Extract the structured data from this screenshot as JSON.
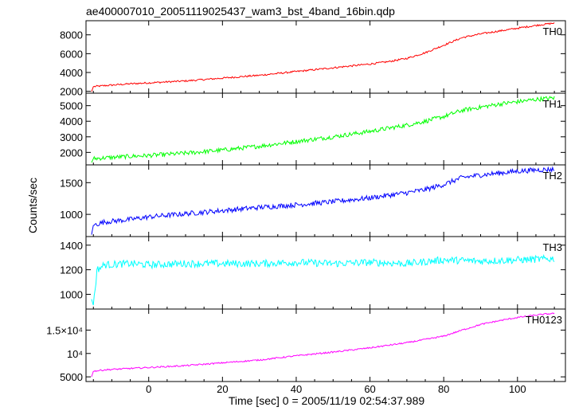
{
  "chart_data": {
    "type": "line",
    "title": "ae400007010_20051119025437_wam3_bst_4band_16bin.qdp",
    "xlabel": "Time [sec] 0 = 2005/11/19 02:54:37.989",
    "ylabel": "Counts/sec",
    "xlim": [
      -17,
      113
    ],
    "xticks": [
      0,
      20,
      40,
      60,
      80,
      100
    ],
    "grid": false,
    "panels": [
      {
        "name": "TH0",
        "color": "#ff0000",
        "ylim": [
          1800,
          9500
        ],
        "yticks": [
          2000,
          4000,
          6000,
          8000
        ],
        "ytick_labels": [
          "2000",
          "4000",
          "6000",
          "8000"
        ],
        "x": [
          -15.5,
          -15,
          -12,
          -5,
          0,
          10,
          20,
          30,
          40,
          50,
          60,
          65,
          70,
          75,
          80,
          85,
          90,
          95,
          100,
          105,
          110
        ],
        "values": [
          1950,
          2500,
          2600,
          2800,
          2900,
          3100,
          3400,
          3700,
          4100,
          4500,
          4900,
          5150,
          5500,
          6100,
          6900,
          7700,
          8100,
          8400,
          8700,
          9000,
          9250
        ]
      },
      {
        "name": "TH1",
        "color": "#00ff00",
        "ylim": [
          1200,
          5800
        ],
        "yticks": [
          2000,
          3000,
          4000,
          5000
        ],
        "ytick_labels": [
          "2000",
          "3000",
          "4000",
          "5000"
        ],
        "x": [
          -15.5,
          -15,
          -12,
          -5,
          0,
          10,
          20,
          30,
          40,
          50,
          60,
          70,
          75,
          80,
          85,
          90,
          95,
          100,
          105,
          110
        ],
        "values": [
          1350,
          1600,
          1650,
          1750,
          1800,
          1950,
          2150,
          2400,
          2700,
          3000,
          3350,
          3750,
          4000,
          4300,
          4700,
          4900,
          5100,
          5250,
          5400,
          5500
        ]
      },
      {
        "name": "TH2",
        "color": "#0000ff",
        "ylim": [
          650,
          1780
        ],
        "yticks": [
          1000,
          1500
        ],
        "ytick_labels": [
          "1000",
          "1500"
        ],
        "x": [
          -15.5,
          -15,
          -12,
          -5,
          0,
          10,
          20,
          30,
          40,
          50,
          60,
          65,
          70,
          75,
          80,
          85,
          90,
          95,
          100,
          105,
          110
        ],
        "values": [
          680,
          830,
          880,
          920,
          960,
          1010,
          1060,
          1110,
          1150,
          1200,
          1260,
          1300,
          1340,
          1390,
          1470,
          1580,
          1620,
          1650,
          1680,
          1700,
          1710
        ]
      },
      {
        "name": "TH3",
        "color": "#00ffff",
        "ylim": [
          880,
          1470
        ],
        "yticks": [
          1000,
          1200,
          1400
        ],
        "ytick_labels": [
          "1000",
          "1200",
          "1400"
        ],
        "x": [
          -15.5,
          -15,
          -14,
          -12,
          -5,
          0,
          10,
          20,
          30,
          40,
          50,
          60,
          70,
          80,
          90,
          100,
          110
        ],
        "values": [
          960,
          910,
          1200,
          1240,
          1250,
          1240,
          1250,
          1250,
          1250,
          1260,
          1250,
          1260,
          1250,
          1280,
          1270,
          1280,
          1290
        ]
      },
      {
        "name": "TH0123",
        "color": "#ff00ff",
        "ylim": [
          4000,
          19500
        ],
        "yticks": [
          5000,
          10000,
          15000
        ],
        "ytick_labels": [
          "5000",
          "10⁴",
          "1.5×10⁴"
        ],
        "x": [
          -15.5,
          -15,
          -12,
          -5,
          0,
          10,
          20,
          30,
          40,
          50,
          60,
          70,
          80,
          85,
          90,
          95,
          100,
          105,
          110
        ],
        "values": [
          5000,
          6200,
          6500,
          6800,
          7000,
          7400,
          8000,
          8600,
          9500,
          10300,
          11200,
          12300,
          13700,
          15000,
          16200,
          17000,
          17700,
          18200,
          18600
        ]
      }
    ]
  }
}
